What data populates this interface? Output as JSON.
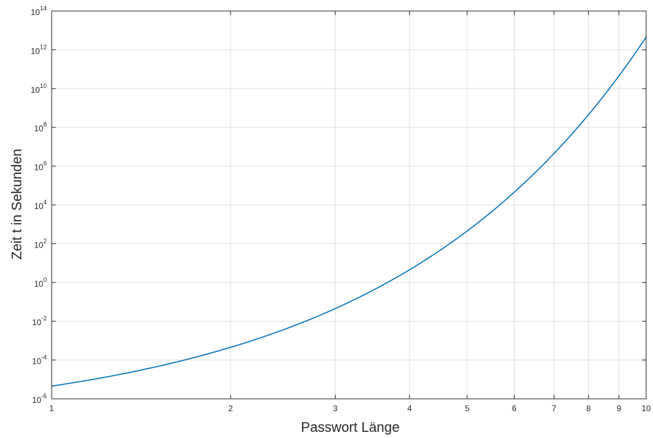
{
  "chart_data": {
    "type": "line",
    "xlabel": "Passwort Länge",
    "ylabel": "Zeit t in Sekunden",
    "xscale": "log",
    "yscale": "log",
    "xlim": [
      1,
      10
    ],
    "ylim": [
      1e-06,
      100000000000000.0
    ],
    "grid": true,
    "x_ticks": [
      {
        "value": 1,
        "label": "1"
      },
      {
        "value": 2,
        "label": "2"
      },
      {
        "value": 3,
        "label": "3"
      },
      {
        "value": 4,
        "label": "4"
      },
      {
        "value": 5,
        "label": "5"
      },
      {
        "value": 6,
        "label": "6"
      },
      {
        "value": 7,
        "label": "7"
      },
      {
        "value": 8,
        "label": "8"
      },
      {
        "value": 9,
        "label": "9"
      },
      {
        "value": 10,
        "label": "10"
      }
    ],
    "y_ticks": [
      {
        "value": 1e-06,
        "base": "10",
        "exp": "-6"
      },
      {
        "value": 0.0001,
        "base": "10",
        "exp": "-4"
      },
      {
        "value": 0.01,
        "base": "10",
        "exp": "-2"
      },
      {
        "value": 1.0,
        "base": "10",
        "exp": "0"
      },
      {
        "value": 100.0,
        "base": "10",
        "exp": "2"
      },
      {
        "value": 10000.0,
        "base": "10",
        "exp": "4"
      },
      {
        "value": 1000000.0,
        "base": "10",
        "exp": "6"
      },
      {
        "value": 100000000.0,
        "base": "10",
        "exp": "8"
      },
      {
        "value": 10000000000.0,
        "base": "10",
        "exp": "10"
      },
      {
        "value": 1000000000000.0,
        "base": "10",
        "exp": "12"
      },
      {
        "value": 100000000000000.0,
        "base": "10",
        "exp": "14"
      }
    ],
    "series": [
      {
        "color": "#0072bd",
        "x": [
          1,
          2,
          3,
          4,
          5,
          6,
          7,
          8,
          9,
          10
        ],
        "y": [
          4.5e-06,
          0.00045,
          0.045,
          4.5,
          450,
          45000,
          4500000.0,
          450000000.0,
          45000000000.0,
          4500000000000.0
        ]
      }
    ]
  }
}
